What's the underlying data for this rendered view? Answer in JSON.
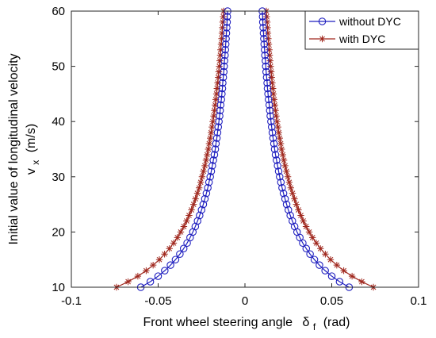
{
  "chart_data": {
    "type": "line",
    "xlabel": "Front wheel steering angle",
    "xlabel_symbol": "δ",
    "xlabel_subscript": "f",
    "xlabel_unit": "(rad)",
    "ylabel_line1": "Initial value of longitudinal velocity",
    "ylabel_symbol": "v",
    "ylabel_subscript": "x",
    "ylabel_unit": "(m/s)",
    "xlim": [
      -0.1,
      0.1
    ],
    "ylim": [
      10,
      60
    ],
    "x_ticks": [
      -0.1,
      -0.05,
      0,
      0.05,
      0.1
    ],
    "x_tick_labels": [
      "-0.1",
      "-0.05",
      "0",
      "0.05",
      "0.1"
    ],
    "y_ticks": [
      10,
      20,
      30,
      40,
      50,
      60
    ],
    "y_tick_labels": [
      "10",
      "20",
      "30",
      "40",
      "50",
      "60"
    ],
    "grid": false,
    "legend_position": "top-right",
    "y_values": [
      10,
      11,
      12,
      13,
      14,
      15,
      16,
      17,
      18,
      19,
      20,
      21,
      22,
      23,
      24,
      25,
      26,
      27,
      28,
      29,
      30,
      31,
      32,
      33,
      34,
      35,
      36,
      37,
      38,
      39,
      40,
      41,
      42,
      43,
      44,
      45,
      46,
      47,
      48,
      49,
      50,
      51,
      52,
      53,
      54,
      55,
      56,
      57,
      58,
      59,
      60
    ],
    "series": [
      {
        "name": "without DYC",
        "color": "#1f1fbf",
        "marker": "circle",
        "x_right": [
          0.06,
          0.0545,
          0.05,
          0.0462,
          0.0429,
          0.04,
          0.0375,
          0.0353,
          0.0333,
          0.0316,
          0.03,
          0.0286,
          0.0273,
          0.0261,
          0.025,
          0.024,
          0.0231,
          0.0222,
          0.0214,
          0.0207,
          0.02,
          0.0194,
          0.0188,
          0.0182,
          0.0176,
          0.0171,
          0.0167,
          0.0162,
          0.0158,
          0.0154,
          0.015,
          0.0146,
          0.0143,
          0.014,
          0.0136,
          0.0133,
          0.013,
          0.0128,
          0.0125,
          0.0122,
          0.012,
          0.0118,
          0.0115,
          0.0113,
          0.0111,
          0.0109,
          0.0107,
          0.0105,
          0.0103,
          0.0102,
          0.01
        ]
      },
      {
        "name": "with DYC",
        "color": "#a0281e",
        "marker": "star",
        "x_right": [
          0.074,
          0.0673,
          0.0617,
          0.0569,
          0.0529,
          0.0493,
          0.0463,
          0.0435,
          0.0411,
          0.0389,
          0.037,
          0.0352,
          0.0336,
          0.0322,
          0.0308,
          0.0296,
          0.0285,
          0.0274,
          0.0264,
          0.0255,
          0.0247,
          0.0239,
          0.0231,
          0.0224,
          0.0218,
          0.0211,
          0.0206,
          0.02,
          0.0195,
          0.019,
          0.0185,
          0.018,
          0.0176,
          0.0172,
          0.0168,
          0.0164,
          0.0161,
          0.0157,
          0.0154,
          0.0151,
          0.0148,
          0.0145,
          0.0142,
          0.014,
          0.0137,
          0.0134,
          0.0132,
          0.013,
          0.0128,
          0.0125,
          0.0123
        ]
      }
    ],
    "symmetric_about_zero": true
  }
}
